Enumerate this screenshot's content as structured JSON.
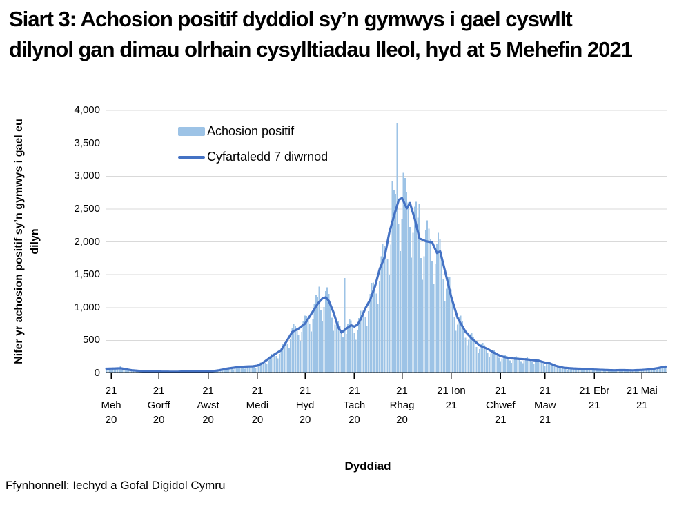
{
  "title": "Siart 3: Achosion positif dyddiol sy’n gymwys i gael cyswllt dilynol gan dimau olrhain cysylltiadau lleol, hyd at 5 Mehefin 2021",
  "source": "Ffynhonnell: Iechyd a Gofal Digidol Cymru",
  "chart_data": {
    "type": "bar",
    "title": "Siart 3: Achosion positif dyddiol sy’n gymwys i gael cyswllt dilynol gan dimau olrhain cysylltiadau lleol, hyd at 5 Mehefin 2021",
    "xlabel": "Dyddiad",
    "ylabel": "Nifer yr achosion positif sy’n gymwys i gael eu dilyn",
    "ylim": [
      0,
      4000
    ],
    "grid": true,
    "legend_position": "top-left-inside",
    "colors": {
      "bars": "#9DC3E6",
      "line": "#4472C4",
      "grid": "#D9D9D9",
      "axis": "#000000"
    },
    "legend": [
      {
        "label": "Achosion positif",
        "type": "bar"
      },
      {
        "label": "Cyfartaledd 7 diwrnod",
        "type": "line"
      }
    ],
    "y_ticks": [
      {
        "value": 0,
        "label": "0"
      },
      {
        "value": 500,
        "label": "500"
      },
      {
        "value": 1000,
        "label": "1,000"
      },
      {
        "value": 1500,
        "label": "1,500"
      },
      {
        "value": 2000,
        "label": "2,000"
      },
      {
        "value": 2500,
        "label": "2,500"
      },
      {
        "value": 3000,
        "label": "3,000"
      },
      {
        "value": 3500,
        "label": "3,500"
      },
      {
        "value": 4000,
        "label": "4,000"
      }
    ],
    "x_range": {
      "start_date": "2020-06-18",
      "end_date": "2021-06-05",
      "days_total": 352,
      "start_weekday": "Thursday"
    },
    "x_ticks": [
      {
        "day": 3,
        "label": "21 Meh 20"
      },
      {
        "day": 33,
        "label": "21 Gorff 20"
      },
      {
        "day": 64,
        "label": "21 Awst 20"
      },
      {
        "day": 95,
        "label": "21 Medi 20"
      },
      {
        "day": 125,
        "label": "21 Hyd 20"
      },
      {
        "day": 156,
        "label": "21 Tach 20"
      },
      {
        "day": 186,
        "label": "21 Rhag 20"
      },
      {
        "day": 217,
        "label": "21 Ion 21"
      },
      {
        "day": 248,
        "label": "21 Chwef 21"
      },
      {
        "day": 276,
        "label": "21 Maw 21"
      },
      {
        "day": 307,
        "label": "21 Ebr 21"
      },
      {
        "day": 337,
        "label": "21 Mai 21"
      }
    ],
    "series": [
      {
        "name": "Cyfartaledd 7 diwrnod",
        "type": "line",
        "points_day_value": [
          [
            0,
            68
          ],
          [
            3,
            70
          ],
          [
            9,
            75
          ],
          [
            16,
            45
          ],
          [
            23,
            32
          ],
          [
            33,
            25
          ],
          [
            44,
            22
          ],
          [
            52,
            32
          ],
          [
            59,
            25
          ],
          [
            66,
            30
          ],
          [
            71,
            45
          ],
          [
            76,
            70
          ],
          [
            82,
            90
          ],
          [
            87,
            100
          ],
          [
            92,
            105
          ],
          [
            95,
            115
          ],
          [
            98,
            150
          ],
          [
            102,
            220
          ],
          [
            106,
            290
          ],
          [
            110,
            350
          ],
          [
            113,
            470
          ],
          [
            117,
            630
          ],
          [
            121,
            680
          ],
          [
            125,
            755
          ],
          [
            129,
            905
          ],
          [
            133,
            1060
          ],
          [
            136,
            1140
          ],
          [
            138,
            1155
          ],
          [
            140,
            1100
          ],
          [
            143,
            920
          ],
          [
            146,
            690
          ],
          [
            148,
            620
          ],
          [
            151,
            680
          ],
          [
            154,
            730
          ],
          [
            156,
            710
          ],
          [
            158,
            740
          ],
          [
            160,
            820
          ],
          [
            163,
            990
          ],
          [
            166,
            1120
          ],
          [
            169,
            1320
          ],
          [
            172,
            1590
          ],
          [
            175,
            1760
          ],
          [
            178,
            2140
          ],
          [
            181,
            2400
          ],
          [
            184,
            2640
          ],
          [
            186,
            2665
          ],
          [
            189,
            2510
          ],
          [
            191,
            2590
          ],
          [
            194,
            2350
          ],
          [
            197,
            2050
          ],
          [
            201,
            2010
          ],
          [
            205,
            1990
          ],
          [
            208,
            1830
          ],
          [
            210,
            1855
          ],
          [
            213,
            1560
          ],
          [
            217,
            1160
          ],
          [
            221,
            840
          ],
          [
            226,
            630
          ],
          [
            230,
            525
          ],
          [
            235,
            420
          ],
          [
            240,
            368
          ],
          [
            244,
            310
          ],
          [
            248,
            262
          ],
          [
            253,
            230
          ],
          [
            259,
            218
          ],
          [
            264,
            212
          ],
          [
            268,
            200
          ],
          [
            272,
            190
          ],
          [
            276,
            162
          ],
          [
            279,
            150
          ],
          [
            283,
            110
          ],
          [
            288,
            82
          ],
          [
            294,
            72
          ],
          [
            301,
            65
          ],
          [
            307,
            56
          ],
          [
            313,
            50
          ],
          [
            319,
            45
          ],
          [
            325,
            48
          ],
          [
            331,
            44
          ],
          [
            337,
            50
          ],
          [
            342,
            58
          ],
          [
            347,
            78
          ],
          [
            350,
            92
          ],
          [
            352,
            100
          ]
        ]
      },
      {
        "name": "Achosion positif",
        "type": "bar",
        "derivation": "daily bars oscillate weekly around the 7-day average line",
        "weekly_profile": [
          1.1,
          1.02,
          0.86,
          0.7,
          0.88,
          1.08,
          1.16
        ],
        "min_value": 8,
        "spike_overrides_day_value": [
          [
            9,
            105
          ],
          [
            134,
            1320
          ],
          [
            150,
            1450
          ],
          [
            180,
            2920
          ],
          [
            183,
            3800
          ],
          [
            187,
            3050
          ],
          [
            197,
            2580
          ]
        ]
      }
    ]
  }
}
